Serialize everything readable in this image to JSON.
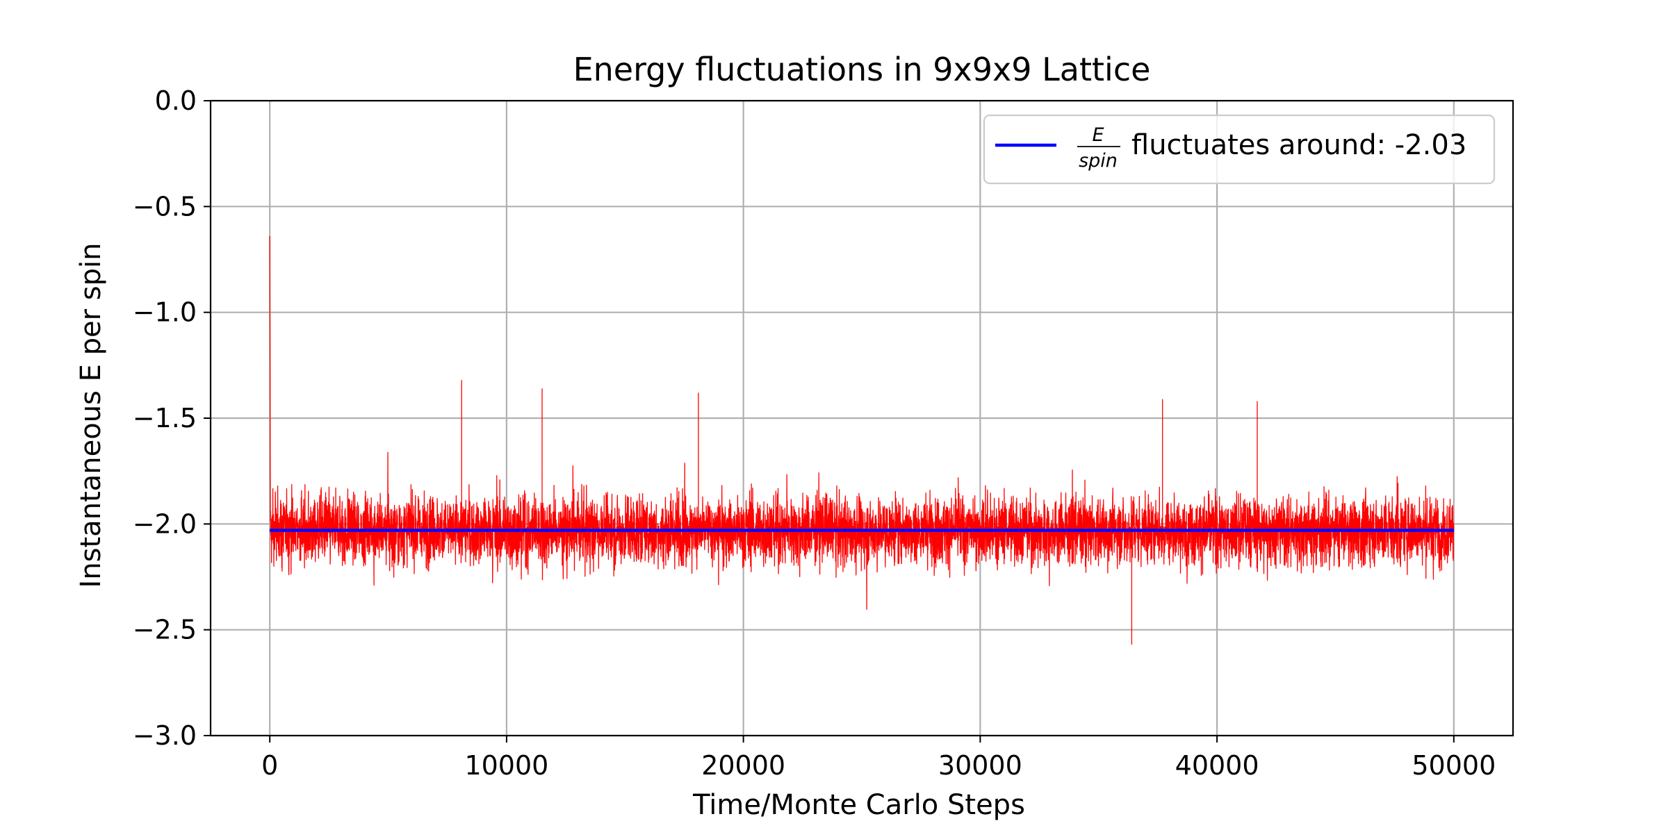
{
  "chart_data": {
    "type": "line",
    "title": "Energy fluctuations in 9x9x9 Lattice",
    "xlabel": "Time/Monte Carlo Steps",
    "ylabel": "Instantaneous E per spin",
    "xlim": [
      -2500,
      52500
    ],
    "ylim": [
      -3.0,
      0.0
    ],
    "xticks": [
      0,
      10000,
      20000,
      30000,
      40000,
      50000
    ],
    "xtick_labels": [
      "0",
      "10000",
      "20000",
      "30000",
      "40000",
      "50000"
    ],
    "yticks": [
      0.0,
      -0.5,
      -1.0,
      -1.5,
      -2.0,
      -2.5,
      -3.0
    ],
    "ytick_labels": [
      "0.0",
      "−0.5",
      "−1.0",
      "−1.5",
      "−2.0",
      "−2.5",
      "−3.0"
    ],
    "grid": true,
    "legend_position": "upper-right",
    "series": [
      {
        "kind": "fluctuation",
        "color": "#ff0000",
        "x_range": [
          0,
          50000
        ],
        "mean": -2.03,
        "typical_range": [
          -2.4,
          -1.7
        ],
        "extremes": [
          -2.57,
          -1.32
        ],
        "initial_value": -0.64,
        "notable_points": [
          {
            "x": 0,
            "y": -0.64
          },
          {
            "x": 8100,
            "y": -1.32
          },
          {
            "x": 11500,
            "y": -1.36
          },
          {
            "x": 18100,
            "y": -1.38
          },
          {
            "x": 36400,
            "y": -2.57
          },
          {
            "x": 37700,
            "y": -1.41
          },
          {
            "x": 41700,
            "y": -1.42
          }
        ]
      },
      {
        "kind": "mean",
        "color": "#0000ff",
        "x_range": [
          0,
          50000
        ],
        "value": -2.03,
        "legend": {
          "numerator": "E",
          "denominator": "spin",
          "text": "fluctuates around: -2.03"
        }
      }
    ]
  }
}
